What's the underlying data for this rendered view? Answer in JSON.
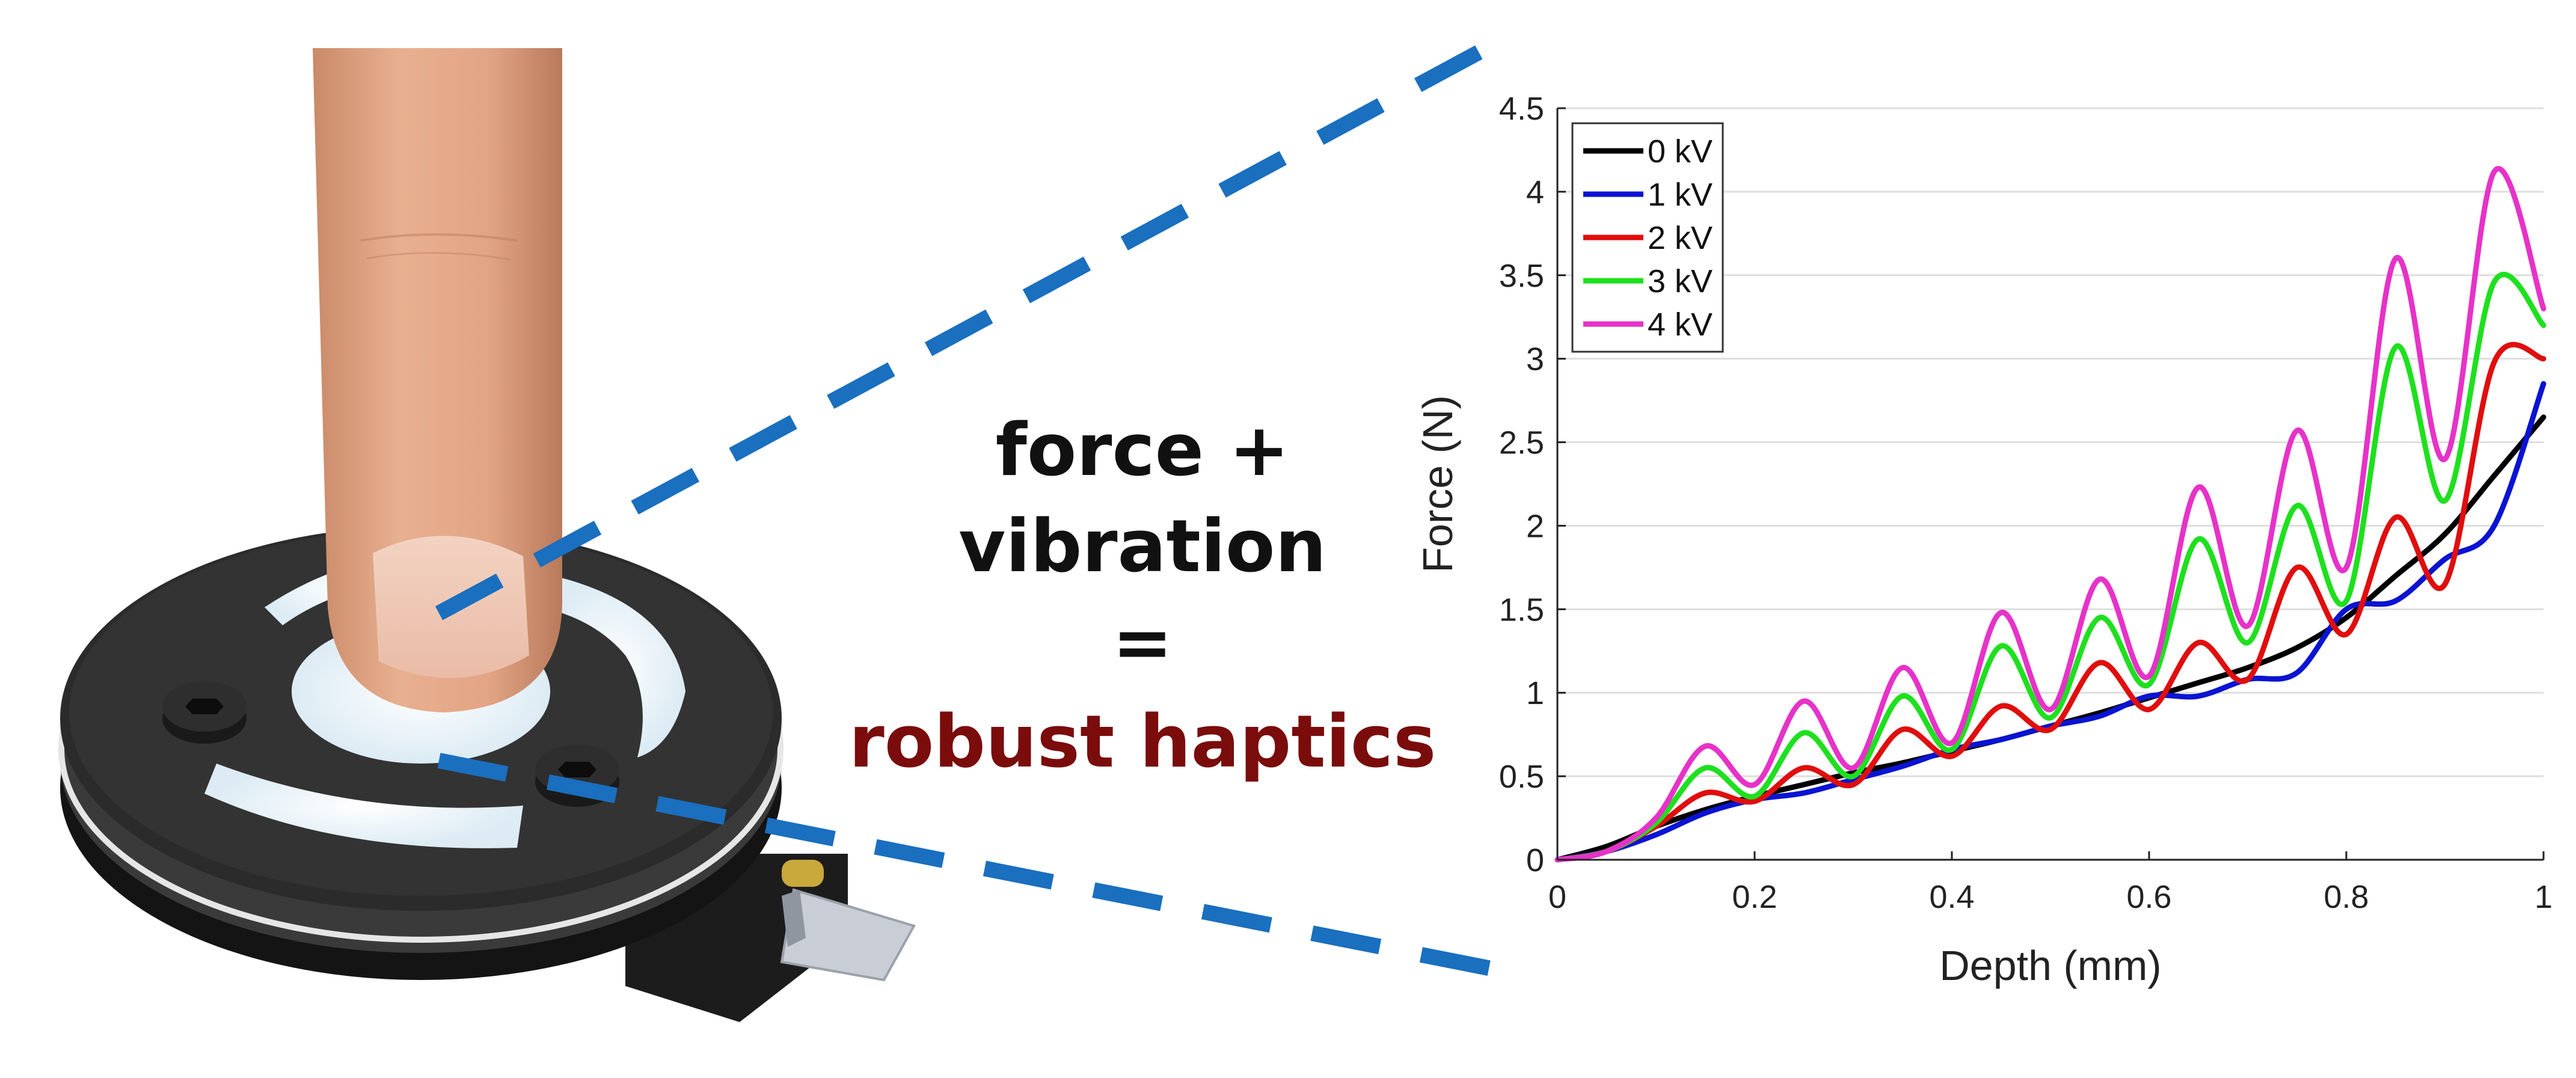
{
  "caption": {
    "line1": "force +",
    "line2": "vibration",
    "line3": "=",
    "line4": "robust haptics",
    "text_color": "#111111",
    "highlight_color": "#7a0c0c"
  },
  "zoom_line_color": "#1a6fbf",
  "chart_data": {
    "type": "line",
    "xlabel": "Depth (mm)",
    "ylabel": "Force (N)",
    "xlim": [
      0,
      1
    ],
    "ylim": [
      0,
      4.5
    ],
    "xticks": [
      "0",
      "0.2",
      "0.4",
      "0.6",
      "0.8",
      "1"
    ],
    "xtick_values": [
      0,
      0.2,
      0.4,
      0.6,
      0.8,
      1
    ],
    "yticks": [
      "0",
      "0.5",
      "1",
      "1.5",
      "2",
      "2.5",
      "3",
      "3.5",
      "4",
      "4.5"
    ],
    "ytick_values": [
      0,
      0.5,
      1,
      1.5,
      2,
      2.5,
      3,
      3.5,
      4,
      4.5
    ],
    "grid": "horizontal",
    "legend_position": "top-left",
    "x": [
      0,
      0.05,
      0.1,
      0.15,
      0.2,
      0.25,
      0.3,
      0.35,
      0.4,
      0.45,
      0.5,
      0.55,
      0.6,
      0.65,
      0.7,
      0.75,
      0.8,
      0.85,
      0.9,
      0.95,
      1.0
    ],
    "series": [
      {
        "name": "0 kV",
        "color": "#000000",
        "values": [
          0,
          0.08,
          0.2,
          0.3,
          0.38,
          0.45,
          0.52,
          0.58,
          0.65,
          0.72,
          0.8,
          0.88,
          0.97,
          1.06,
          1.15,
          1.27,
          1.45,
          1.7,
          1.95,
          2.3,
          2.65
        ]
      },
      {
        "name": "1 kV",
        "color": "#0a14d2",
        "values": [
          0,
          0.05,
          0.15,
          0.28,
          0.36,
          0.4,
          0.48,
          0.56,
          0.66,
          0.72,
          0.8,
          0.86,
          0.98,
          0.98,
          1.08,
          1.12,
          1.5,
          1.55,
          1.8,
          2.0,
          2.85
        ]
      },
      {
        "name": "2 kV",
        "color": "#e00e0e",
        "values": [
          0,
          0.05,
          0.2,
          0.4,
          0.35,
          0.55,
          0.45,
          0.78,
          0.62,
          0.92,
          0.78,
          1.18,
          0.9,
          1.3,
          1.08,
          1.75,
          1.35,
          2.05,
          1.65,
          2.98,
          3.0
        ]
      },
      {
        "name": "3 kV",
        "color": "#1ee01e",
        "values": [
          0,
          0.05,
          0.22,
          0.55,
          0.38,
          0.76,
          0.5,
          0.98,
          0.66,
          1.28,
          0.85,
          1.45,
          1.05,
          1.92,
          1.3,
          2.12,
          1.55,
          3.07,
          2.15,
          3.46,
          3.2
        ]
      },
      {
        "name": "4 kV",
        "color": "#e632c8",
        "values": [
          0,
          0.05,
          0.25,
          0.68,
          0.45,
          0.95,
          0.55,
          1.15,
          0.7,
          1.48,
          0.9,
          1.68,
          1.1,
          2.23,
          1.4,
          2.57,
          1.75,
          3.6,
          2.4,
          4.12,
          3.3
        ]
      }
    ]
  }
}
